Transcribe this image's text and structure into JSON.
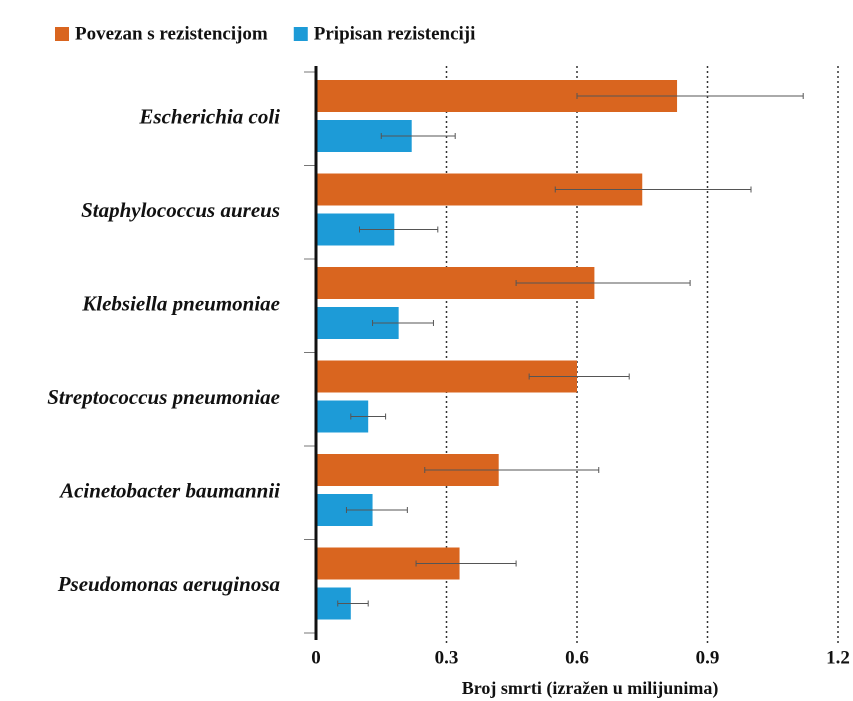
{
  "chart_data": {
    "type": "bar",
    "orientation": "horizontal",
    "x_label": "Broj smrti (izražen u milijunima)",
    "categories": [
      "Escherichia coli",
      "Staphylococcus aureus",
      "Klebsiella pneumoniae",
      "Streptococcus pneumoniae",
      "Acinetobacter baumannii",
      "Pseudomonas aeruginosa"
    ],
    "series": [
      {
        "name": "Povezan s rezistencijom",
        "color": "#d9651f",
        "values": [
          0.83,
          0.75,
          0.64,
          0.6,
          0.42,
          0.33
        ],
        "lower": [
          0.6,
          0.55,
          0.46,
          0.49,
          0.25,
          0.23
        ],
        "upper": [
          1.12,
          1.0,
          0.86,
          0.72,
          0.65,
          0.46
        ]
      },
      {
        "name": "Pripisan rezistenciji",
        "color": "#1d9bd7",
        "values": [
          0.22,
          0.18,
          0.19,
          0.12,
          0.13,
          0.08
        ],
        "lower": [
          0.15,
          0.1,
          0.13,
          0.08,
          0.07,
          0.05
        ],
        "upper": [
          0.32,
          0.28,
          0.27,
          0.16,
          0.21,
          0.12
        ]
      }
    ],
    "xlim": [
      0,
      1.2
    ],
    "xticks": [
      0,
      0.3,
      0.6,
      0.9,
      1.2
    ],
    "grid": true,
    "legend": "top"
  }
}
